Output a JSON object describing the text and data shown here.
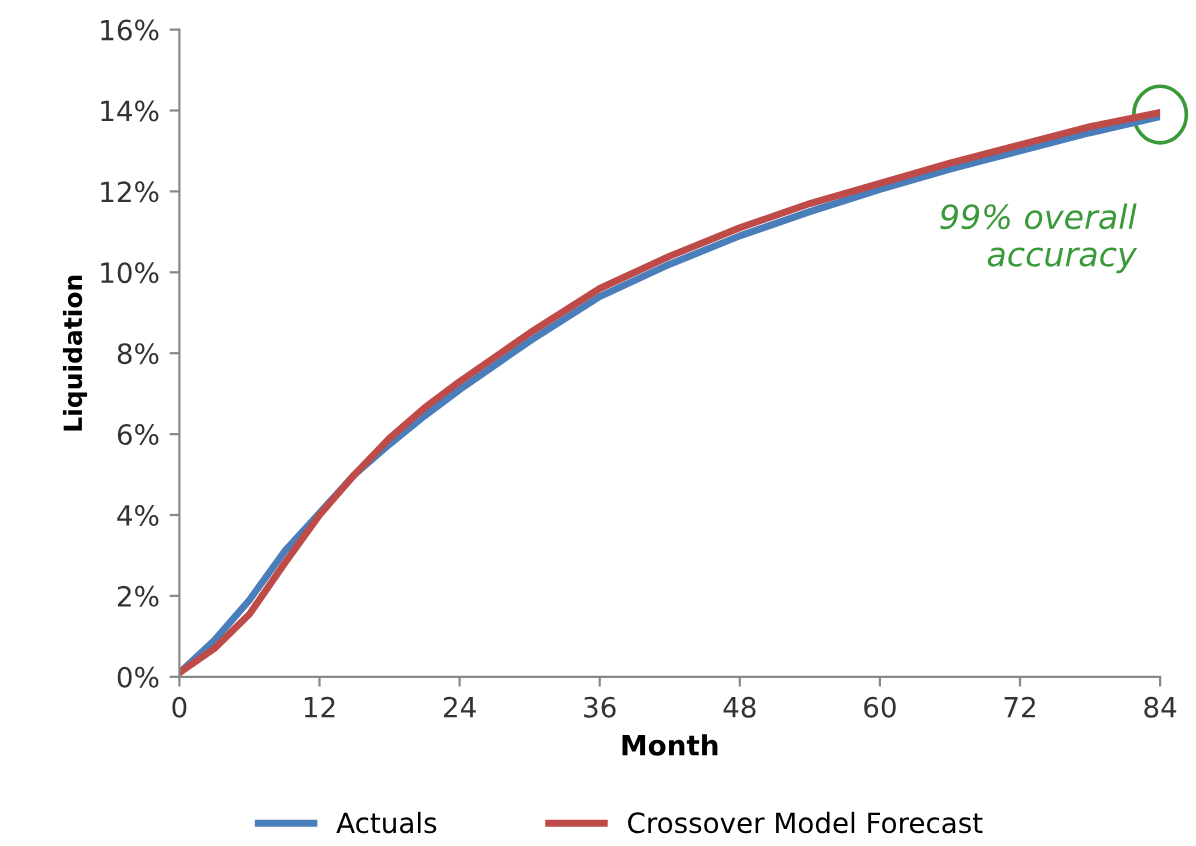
{
  "chart_data": {
    "type": "line",
    "xlabel": "Month",
    "ylabel": "Liquidation",
    "x": [
      0,
      3,
      6,
      9,
      12,
      15,
      18,
      21,
      24,
      30,
      36,
      42,
      48,
      54,
      60,
      66,
      72,
      78,
      84
    ],
    "series": [
      {
        "name": "Actuals",
        "color": "#4a7ebb",
        "values": [
          0.1,
          0.9,
          1.9,
          3.1,
          4.05,
          5.0,
          5.75,
          6.45,
          7.1,
          8.3,
          9.4,
          10.2,
          10.9,
          11.5,
          12.05,
          12.55,
          13.0,
          13.45,
          13.85
        ]
      },
      {
        "name": "Crossover Model Forecast",
        "color": "#be4b48",
        "values": [
          0.1,
          0.7,
          1.55,
          2.8,
          4.0,
          5.0,
          5.9,
          6.65,
          7.3,
          8.5,
          9.6,
          10.4,
          11.1,
          11.7,
          12.2,
          12.7,
          13.15,
          13.6,
          13.95
        ]
      }
    ],
    "xlim": [
      0,
      84
    ],
    "xticks": [
      0,
      12,
      24,
      36,
      48,
      60,
      72,
      84
    ],
    "ylim": [
      0,
      16
    ],
    "yticks": [
      {
        "value": 0,
        "label": "0%"
      },
      {
        "value": 2,
        "label": "2%"
      },
      {
        "value": 4,
        "label": "4%"
      },
      {
        "value": 6,
        "label": "6%"
      },
      {
        "value": 8,
        "label": "8%"
      },
      {
        "value": 10,
        "label": "10%"
      },
      {
        "value": 12,
        "label": "12%"
      },
      {
        "value": 14,
        "label": "14%"
      },
      {
        "value": 16,
        "label": "16%"
      }
    ],
    "annotations": [
      {
        "text": "99% overall\naccuracy",
        "x": 84,
        "y": 13.9
      }
    ],
    "grid": false,
    "legend": "bottom",
    "marker": "none",
    "line_style": "solid"
  }
}
